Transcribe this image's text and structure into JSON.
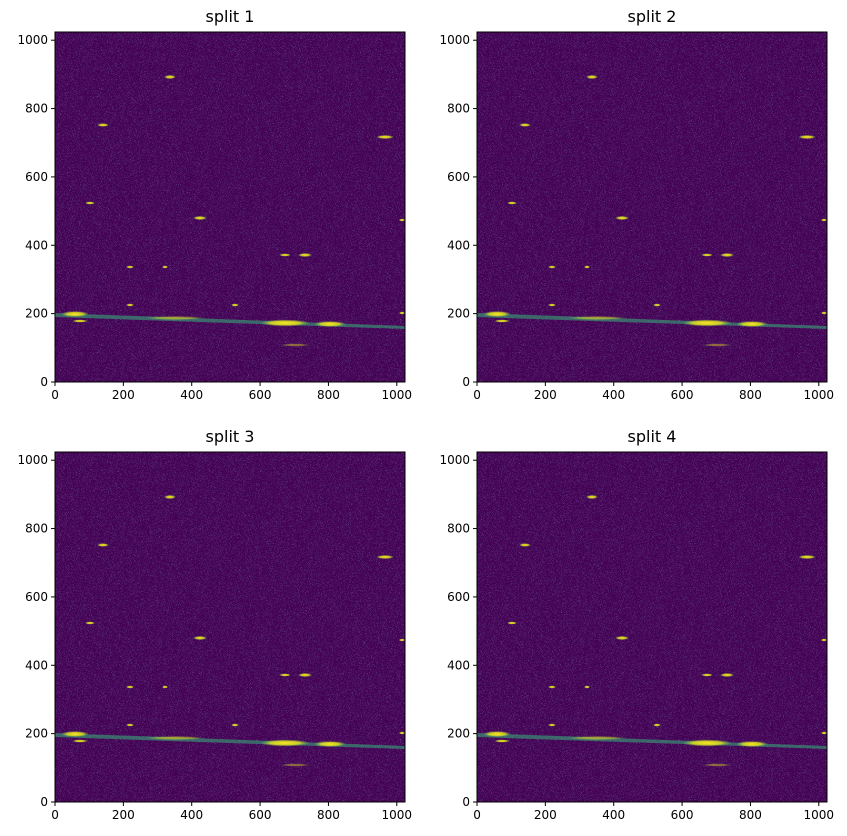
{
  "chart_data": [
    {
      "type": "image",
      "title": "split 1",
      "xlim": [
        0,
        1024
      ],
      "ylim": [
        0,
        1024
      ],
      "xticks": [
        0,
        200,
        400,
        600,
        800,
        1000
      ],
      "yticks": [
        0,
        200,
        400,
        600,
        800,
        1000
      ]
    },
    {
      "type": "image",
      "title": "split 2",
      "xlim": [
        0,
        1024
      ],
      "ylim": [
        0,
        1024
      ],
      "xticks": [
        0,
        200,
        400,
        600,
        800,
        1000
      ],
      "yticks": [
        0,
        200,
        400,
        600,
        800,
        1000
      ]
    },
    {
      "type": "image",
      "title": "split 3",
      "xlim": [
        0,
        1024
      ],
      "ylim": [
        0,
        1024
      ],
      "xticks": [
        0,
        200,
        400,
        600,
        800,
        1000
      ],
      "yticks": [
        0,
        200,
        400,
        600,
        800,
        1000
      ]
    },
    {
      "type": "image",
      "title": "split 4",
      "xlim": [
        0,
        1024
      ],
      "ylim": [
        0,
        1024
      ],
      "xticks": [
        0,
        200,
        400,
        600,
        800,
        1000
      ],
      "yticks": [
        0,
        200,
        400,
        600,
        800,
        1000
      ]
    }
  ]
}
